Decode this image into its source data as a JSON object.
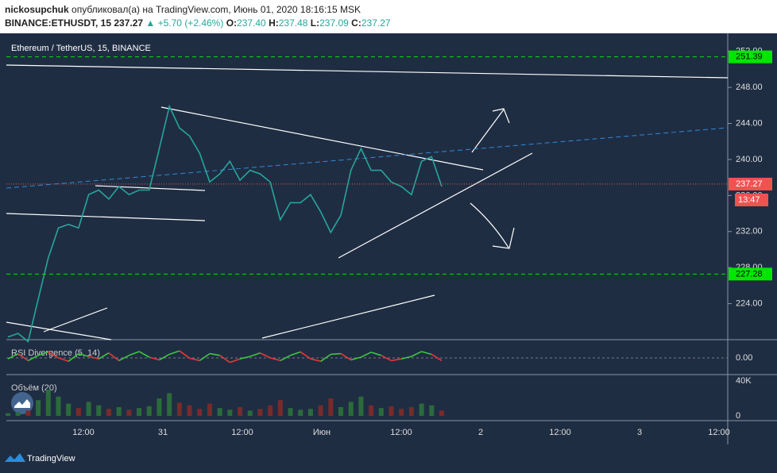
{
  "header": {
    "author": "nickosupchuk",
    "published": "опубликовал(а) на TradingView.com, Июнь 01, 2020 18:16:15 MSK",
    "symbol": "BINANCE:ETHUSDT, 15",
    "last": "237.27",
    "change": "▲ +5.70 (+2.46%)",
    "o_label": "O:",
    "open": "237.40",
    "h_label": "H:",
    "high": "237.48",
    "l_label": "L:",
    "low": "237.09",
    "c_label": "C:",
    "close": "237.27"
  },
  "chart_data": {
    "type": "line",
    "title": "Ethereum / TetherUS, 15, BINANCE",
    "color": "#26a69a",
    "values": [
      220.3,
      220.7,
      219.8,
      224.5,
      229.1,
      232.4,
      232.8,
      232.4,
      236.1,
      236.6,
      235.6,
      237.0,
      236.1,
      236.6,
      236.6,
      241.2,
      245.9,
      243.5,
      242.6,
      240.7,
      237.5,
      238.4,
      239.8,
      237.7,
      238.8,
      238.4,
      237.5,
      233.3,
      235.2,
      235.2,
      236.1,
      234.2,
      231.9,
      233.8,
      238.8,
      241.2,
      238.8,
      238.8,
      237.5,
      237.0,
      236.1,
      239.8,
      240.3,
      237.0
    ],
    "ylim": [
      220,
      254
    ],
    "yticks": [
      {
        "value": 224,
        "label": "224.00"
      },
      {
        "value": 228,
        "label": "228.00"
      },
      {
        "value": 232,
        "label": "232.00"
      },
      {
        "value": 236,
        "label": "236.00"
      },
      {
        "value": 240,
        "label": "240.00"
      },
      {
        "value": 244,
        "label": "244.00"
      },
      {
        "value": 248,
        "label": "248.00"
      },
      {
        "value": 252,
        "label": "252.00"
      }
    ],
    "levels": [
      {
        "value": 251.39,
        "label": "251.39",
        "color": "#00e600"
      },
      {
        "value": 237.27,
        "label": "237.27",
        "color": "#ef5350"
      },
      {
        "value": 227.28,
        "label": "227.28",
        "color": "#00e600"
      }
    ],
    "countdown": "13:47",
    "xticks": [
      "12:00",
      "31",
      "12:00",
      "Июн",
      "12:00",
      "2",
      "12:00",
      "3",
      "12:00"
    ]
  },
  "rsi": {
    "title": "RSI Divergence (5, 14)",
    "tick": "0.00",
    "values": [
      45,
      60,
      40,
      55,
      65,
      48,
      38,
      60,
      52,
      45,
      62,
      40,
      55,
      66,
      50,
      42,
      58,
      68,
      47,
      40,
      60,
      55,
      35,
      45,
      52,
      62,
      48,
      40,
      55,
      65,
      45,
      38,
      58,
      60,
      42,
      50,
      64,
      55,
      40,
      45,
      52,
      66,
      58,
      40
    ]
  },
  "volume": {
    "title": "Объём (20)",
    "ylim": [
      0,
      50000
    ],
    "yticks": [
      {
        "value": 0,
        "label": "0"
      },
      {
        "value": 40000,
        "label": "40K"
      }
    ],
    "values": [
      3000,
      4000,
      6000,
      18000,
      30000,
      22000,
      14000,
      9000,
      16000,
      12000,
      8000,
      10000,
      7000,
      9000,
      11000,
      20000,
      26000,
      15000,
      12000,
      8000,
      14000,
      9000,
      7000,
      10000,
      6000,
      8000,
      12000,
      18000,
      9000,
      7000,
      8000,
      12000,
      20000,
      10000,
      16000,
      22000,
      12000,
      9000,
      11000,
      8000,
      10000,
      14000,
      12000,
      6000
    ]
  },
  "footer": {
    "brand": "TradingView"
  }
}
